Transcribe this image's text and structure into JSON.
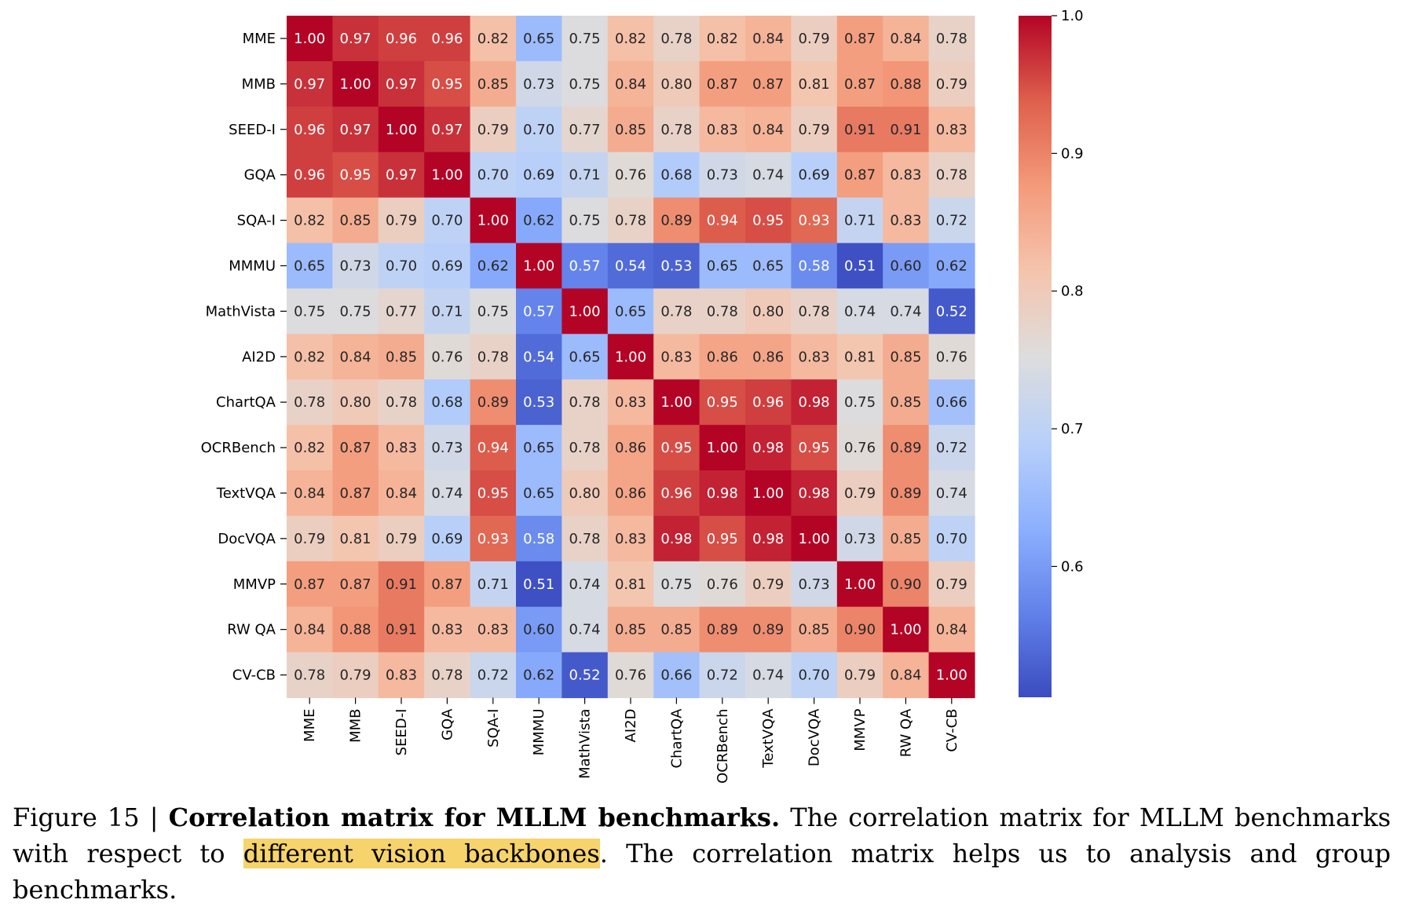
{
  "chart_data": {
    "type": "heatmap",
    "title": "",
    "xlabel": "",
    "ylabel": "",
    "rows": [
      "MME",
      "MMB",
      "SEED-I",
      "GQA",
      "SQA-I",
      "MMMU",
      "MathVista",
      "AI2D",
      "ChartQA",
      "OCRBench",
      "TextVQA",
      "DocVQA",
      "MMVP",
      "RW QA",
      "CV-CB"
    ],
    "columns": [
      "MME",
      "MMB",
      "SEED-I",
      "GQA",
      "SQA-I",
      "MMMU",
      "MathVista",
      "AI2D",
      "ChartQA",
      "OCRBench",
      "TextVQA",
      "DocVQA",
      "MMVP",
      "RW QA",
      "CV-CB"
    ],
    "values": [
      [
        1.0,
        0.97,
        0.96,
        0.96,
        0.82,
        0.65,
        0.75,
        0.82,
        0.78,
        0.82,
        0.84,
        0.79,
        0.87,
        0.84,
        0.78
      ],
      [
        0.97,
        1.0,
        0.97,
        0.95,
        0.85,
        0.73,
        0.75,
        0.84,
        0.8,
        0.87,
        0.87,
        0.81,
        0.87,
        0.88,
        0.79
      ],
      [
        0.96,
        0.97,
        1.0,
        0.97,
        0.79,
        0.7,
        0.77,
        0.85,
        0.78,
        0.83,
        0.84,
        0.79,
        0.91,
        0.91,
        0.83
      ],
      [
        0.96,
        0.95,
        0.97,
        1.0,
        0.7,
        0.69,
        0.71,
        0.76,
        0.68,
        0.73,
        0.74,
        0.69,
        0.87,
        0.83,
        0.78
      ],
      [
        0.82,
        0.85,
        0.79,
        0.7,
        1.0,
        0.62,
        0.75,
        0.78,
        0.89,
        0.94,
        0.95,
        0.93,
        0.71,
        0.83,
        0.72
      ],
      [
        0.65,
        0.73,
        0.7,
        0.69,
        0.62,
        1.0,
        0.57,
        0.54,
        0.53,
        0.65,
        0.65,
        0.58,
        0.51,
        0.6,
        0.62
      ],
      [
        0.75,
        0.75,
        0.77,
        0.71,
        0.75,
        0.57,
        1.0,
        0.65,
        0.78,
        0.78,
        0.8,
        0.78,
        0.74,
        0.74,
        0.52
      ],
      [
        0.82,
        0.84,
        0.85,
        0.76,
        0.78,
        0.54,
        0.65,
        1.0,
        0.83,
        0.86,
        0.86,
        0.83,
        0.81,
        0.85,
        0.76
      ],
      [
        0.78,
        0.8,
        0.78,
        0.68,
        0.89,
        0.53,
        0.78,
        0.83,
        1.0,
        0.95,
        0.96,
        0.98,
        0.75,
        0.85,
        0.66
      ],
      [
        0.82,
        0.87,
        0.83,
        0.73,
        0.94,
        0.65,
        0.78,
        0.86,
        0.95,
        1.0,
        0.98,
        0.95,
        0.76,
        0.89,
        0.72
      ],
      [
        0.84,
        0.87,
        0.84,
        0.74,
        0.95,
        0.65,
        0.8,
        0.86,
        0.96,
        0.98,
        1.0,
        0.98,
        0.79,
        0.89,
        0.74
      ],
      [
        0.79,
        0.81,
        0.79,
        0.69,
        0.93,
        0.58,
        0.78,
        0.83,
        0.98,
        0.95,
        0.98,
        1.0,
        0.73,
        0.85,
        0.7
      ],
      [
        0.87,
        0.87,
        0.91,
        0.87,
        0.71,
        0.51,
        0.74,
        0.81,
        0.75,
        0.76,
        0.79,
        0.73,
        1.0,
        0.9,
        0.79
      ],
      [
        0.84,
        0.88,
        0.91,
        0.83,
        0.83,
        0.6,
        0.74,
        0.85,
        0.85,
        0.89,
        0.89,
        0.85,
        0.9,
        1.0,
        0.84
      ],
      [
        0.78,
        0.79,
        0.83,
        0.78,
        0.72,
        0.62,
        0.52,
        0.76,
        0.66,
        0.72,
        0.74,
        0.7,
        0.79,
        0.84,
        1.0
      ]
    ],
    "colormap": "coolwarm",
    "color_range": [
      0.505,
      1.0
    ],
    "colorbar_ticks": [
      1.0,
      0.9,
      0.8,
      0.7,
      0.6
    ],
    "colorbar_tick_labels": [
      "1.0",
      "0.9",
      "0.8",
      "0.7",
      "0.6"
    ],
    "colorbar_placement": "right",
    "grid": false
  },
  "caption": {
    "figure_number": "Figure 15 |",
    "title": "Correlation matrix for MLLM benchmarks.",
    "text_before_highlight": "The correlation matrix for MLLM benchmarks with respect to",
    "highlighted_text": "different vision backbones",
    "text_after_highlight": ". The correlation matrix helps us to analysis and group benchmarks."
  }
}
